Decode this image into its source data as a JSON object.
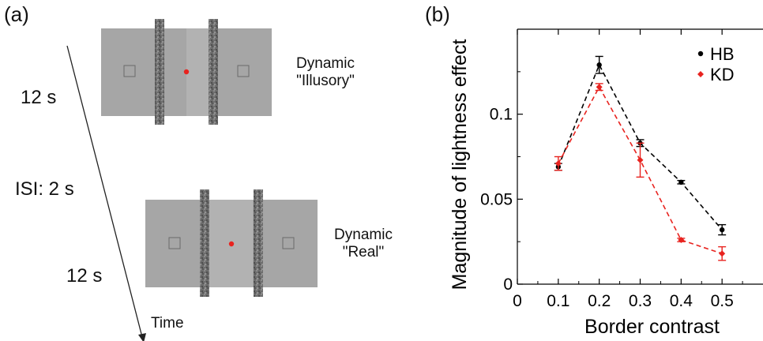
{
  "panel_a": {
    "label": "(a)",
    "duration_1": "12 s",
    "isi": "ISI: 2 s",
    "duration_2": "12 s",
    "time_label": "Time",
    "stim1_line1": "Dynamic",
    "stim1_line2": "\"Illusory\"",
    "stim2_line1": "Dynamic",
    "stim2_line2": "\"Real\""
  },
  "panel_b": {
    "label": "(b)"
  },
  "colors": {
    "hb": "#000000",
    "kd": "#e8231f",
    "stim_bg": "#a6a6a6",
    "fixation": "#e8231f"
  },
  "chart_data": {
    "type": "line",
    "xlabel": "Border contrast",
    "ylabel": "Magnitude of lightness effect",
    "xlim": [
      0,
      0.6
    ],
    "ylim": [
      0,
      0.15
    ],
    "xticks": [
      0,
      0.1,
      0.2,
      0.3,
      0.4,
      0.5
    ],
    "xtick_labels": [
      "0",
      "0.1",
      "0.2",
      "0.3",
      "0.4",
      "0.5"
    ],
    "yticks": [
      0,
      0.05,
      0.1
    ],
    "ytick_labels": [
      "0",
      "0.05",
      "0.1"
    ],
    "legend_position": "top-right",
    "series": [
      {
        "name": "HB",
        "color": "#000000",
        "marker": "circle",
        "x": [
          0.1,
          0.2,
          0.3,
          0.4,
          0.5
        ],
        "y": [
          0.069,
          0.129,
          0.083,
          0.06,
          0.032
        ],
        "err": [
          0.002,
          0.005,
          0.002,
          0.001,
          0.003
        ]
      },
      {
        "name": "KD",
        "color": "#e8231f",
        "marker": "diamond",
        "x": [
          0.1,
          0.2,
          0.3,
          0.4,
          0.5
        ],
        "y": [
          0.071,
          0.116,
          0.073,
          0.026,
          0.018
        ],
        "err": [
          0.004,
          0.002,
          0.01,
          0.001,
          0.004
        ]
      }
    ]
  }
}
